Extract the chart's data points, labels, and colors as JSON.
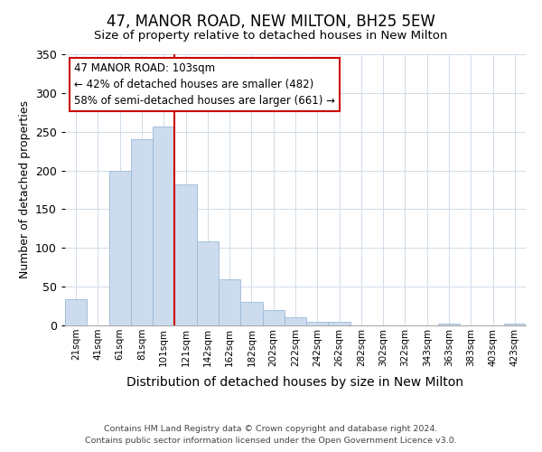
{
  "title": "47, MANOR ROAD, NEW MILTON, BH25 5EW",
  "subtitle": "Size of property relative to detached houses in New Milton",
  "xlabel": "Distribution of detached houses by size in New Milton",
  "ylabel": "Number of detached properties",
  "bar_color": "#ccdcee",
  "bar_edge_color": "#9ab8d8",
  "categories": [
    "21sqm",
    "41sqm",
    "61sqm",
    "81sqm",
    "101sqm",
    "121sqm",
    "142sqm",
    "162sqm",
    "182sqm",
    "202sqm",
    "222sqm",
    "242sqm",
    "262sqm",
    "282sqm",
    "302sqm",
    "322sqm",
    "343sqm",
    "363sqm",
    "383sqm",
    "403sqm",
    "423sqm"
  ],
  "values": [
    34,
    0,
    199,
    240,
    257,
    182,
    108,
    60,
    30,
    20,
    10,
    5,
    5,
    0,
    0,
    0,
    0,
    2,
    0,
    0,
    2
  ],
  "ylim": [
    0,
    350
  ],
  "yticks": [
    0,
    50,
    100,
    150,
    200,
    250,
    300,
    350
  ],
  "vline_x_index": 4,
  "vline_color": "#cc0000",
  "annotation_line1": "47 MANOR ROAD: 103sqm",
  "annotation_line2": "← 42% of detached houses are smaller (482)",
  "annotation_line3": "58% of semi-detached houses are larger (661) →",
  "annotation_box_color": "#ffffff",
  "annotation_box_edge": "#cc0000",
  "footer_line1": "Contains HM Land Registry data © Crown copyright and database right 2024.",
  "footer_line2": "Contains public sector information licensed under the Open Government Licence v3.0.",
  "figsize": [
    6.0,
    5.0
  ],
  "dpi": 100
}
